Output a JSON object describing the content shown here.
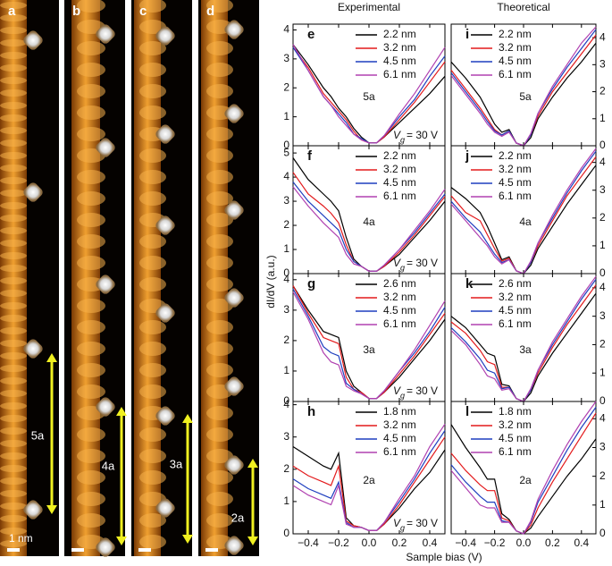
{
  "figure": {
    "column_titles": [
      "Experimental",
      "Theoretical"
    ],
    "ylabel": "dI/dV (a.u.)",
    "xlabel": "Sample bias (V)"
  },
  "images": [
    {
      "label": "a",
      "period": "5a"
    },
    {
      "label": "b",
      "period": "4a"
    },
    {
      "label": "c",
      "period": "3a"
    },
    {
      "label": "d",
      "period": "2a"
    }
  ],
  "scale_bar": "1 nm",
  "chart_data": [
    {
      "type": "line",
      "panel": "e",
      "annotation": "5a",
      "gate": {
        "symbol": "V",
        "sub": "g",
        "text": "= 30 V"
      },
      "x": [
        -0.5,
        -0.4,
        -0.3,
        -0.25,
        -0.2,
        -0.15,
        -0.1,
        -0.05,
        0,
        0.05,
        0.1,
        0.2,
        0.3,
        0.4,
        0.5
      ],
      "xlim": [
        -0.5,
        0.5
      ],
      "xticks": [
        -0.4,
        -0.2,
        0,
        0.2,
        0.4
      ],
      "ylim": [
        0,
        4.2
      ],
      "yticks": [
        0,
        1,
        2,
        3,
        4
      ],
      "series": [
        {
          "name": "2.2 nm",
          "color": "#000000",
          "values": [
            3.5,
            2.8,
            2.0,
            1.7,
            1.3,
            1.0,
            0.6,
            0.3,
            0.1,
            0.1,
            0.3,
            0.8,
            1.3,
            1.8,
            2.4
          ]
        },
        {
          "name": "3.2 nm",
          "color": "#e31a1c",
          "values": [
            3.4,
            2.7,
            1.8,
            1.5,
            1.2,
            0.9,
            0.5,
            0.2,
            0.1,
            0.1,
            0.3,
            0.9,
            1.5,
            2.2,
            2.9
          ]
        },
        {
          "name": "4.5 nm",
          "color": "#1f3fbf",
          "values": [
            3.4,
            2.6,
            1.7,
            1.4,
            1.1,
            0.8,
            0.4,
            0.25,
            0.1,
            0.1,
            0.35,
            1.0,
            1.6,
            2.4,
            3.1
          ]
        },
        {
          "name": "6.1 nm",
          "color": "#b040b0",
          "values": [
            3.5,
            2.6,
            1.7,
            1.4,
            1.0,
            0.7,
            0.4,
            0.2,
            0.1,
            0.1,
            0.35,
            1.1,
            1.8,
            2.6,
            3.4
          ]
        }
      ]
    },
    {
      "type": "line",
      "panel": "f",
      "annotation": "4a",
      "gate": {
        "symbol": "V",
        "sub": "g",
        "text": "= 30 V"
      },
      "x": [
        -0.5,
        -0.4,
        -0.3,
        -0.25,
        -0.2,
        -0.15,
        -0.1,
        -0.05,
        0,
        0.05,
        0.1,
        0.2,
        0.3,
        0.4,
        0.5
      ],
      "xlim": [
        -0.5,
        0.5
      ],
      "xticks": [
        -0.4,
        -0.2,
        0,
        0.2,
        0.4
      ],
      "ylim": [
        0,
        5.3
      ],
      "yticks": [
        0,
        1,
        2,
        3,
        4,
        5
      ],
      "series": [
        {
          "name": "2.2 nm",
          "color": "#000000",
          "values": [
            4.8,
            3.9,
            3.3,
            3.0,
            2.6,
            1.5,
            0.6,
            0.3,
            0.1,
            0.1,
            0.3,
            0.8,
            1.5,
            2.2,
            3.0
          ]
        },
        {
          "name": "3.2 nm",
          "color": "#e31a1c",
          "values": [
            4.2,
            3.3,
            2.8,
            2.5,
            2.1,
            1.2,
            0.5,
            0.3,
            0.1,
            0.1,
            0.3,
            0.9,
            1.6,
            2.4,
            3.2
          ]
        },
        {
          "name": "4.5 nm",
          "color": "#1f3fbf",
          "values": [
            3.8,
            3.0,
            2.4,
            2.1,
            1.8,
            1.0,
            0.5,
            0.3,
            0.1,
            0.1,
            0.35,
            1.0,
            1.7,
            2.5,
            3.3
          ]
        },
        {
          "name": "6.1 nm",
          "color": "#b040b0",
          "values": [
            3.6,
            2.8,
            2.1,
            1.8,
            1.5,
            0.8,
            0.4,
            0.3,
            0.1,
            0.1,
            0.35,
            1.0,
            1.8,
            2.6,
            3.5
          ]
        }
      ]
    },
    {
      "type": "line",
      "panel": "g",
      "annotation": "3a",
      "gate": {
        "symbol": "V",
        "sub": "g",
        "text": "= 30 V"
      },
      "x": [
        -0.5,
        -0.4,
        -0.3,
        -0.25,
        -0.2,
        -0.15,
        -0.1,
        -0.05,
        0,
        0.05,
        0.1,
        0.2,
        0.3,
        0.4,
        0.5
      ],
      "xlim": [
        -0.5,
        0.5
      ],
      "xticks": [
        -0.4,
        -0.2,
        0,
        0.2,
        0.4
      ],
      "ylim": [
        0,
        4.2
      ],
      "yticks": [
        0,
        1,
        2,
        3,
        4
      ],
      "series": [
        {
          "name": "2.6 nm",
          "color": "#000000",
          "values": [
            3.8,
            3.0,
            2.3,
            2.2,
            2.1,
            1.0,
            0.5,
            0.3,
            0.1,
            0.1,
            0.3,
            0.8,
            1.4,
            2.0,
            2.7
          ]
        },
        {
          "name": "3.2 nm",
          "color": "#e31a1c",
          "values": [
            3.8,
            2.9,
            2.1,
            2.0,
            1.9,
            0.8,
            0.4,
            0.3,
            0.1,
            0.1,
            0.3,
            0.9,
            1.5,
            2.2,
            2.9
          ]
        },
        {
          "name": "4.5 nm",
          "color": "#1f3fbf",
          "values": [
            3.7,
            2.8,
            1.8,
            1.6,
            1.5,
            0.6,
            0.4,
            0.25,
            0.1,
            0.1,
            0.35,
            1.0,
            1.6,
            2.3,
            3.1
          ]
        },
        {
          "name": "6.1 nm",
          "color": "#b040b0",
          "values": [
            3.6,
            2.7,
            1.6,
            1.3,
            1.2,
            0.5,
            0.35,
            0.25,
            0.1,
            0.1,
            0.35,
            1.0,
            1.7,
            2.5,
            3.3
          ]
        }
      ]
    },
    {
      "type": "line",
      "panel": "h",
      "annotation": "2a",
      "gate": {
        "symbol": "V",
        "sub": "g",
        "text": "= 30 V"
      },
      "x": [
        -0.5,
        -0.4,
        -0.3,
        -0.25,
        -0.2,
        -0.15,
        -0.1,
        -0.05,
        0,
        0.05,
        0.1,
        0.2,
        0.3,
        0.4,
        0.5
      ],
      "xlim": [
        -0.5,
        0.5
      ],
      "xticks": [
        {
          "value": -0.4,
          "label": "−0.4"
        },
        {
          "value": -0.2,
          "label": "−0.2"
        },
        {
          "value": 0,
          "label": "0.0"
        },
        0.2,
        0.4
      ],
      "ylim": [
        0,
        4.1
      ],
      "yticks": [
        0,
        1,
        2,
        3,
        4
      ],
      "series": [
        {
          "name": "1.8 nm",
          "color": "#000000",
          "values": [
            2.7,
            2.4,
            2.1,
            2.0,
            2.5,
            0.5,
            0.25,
            0.2,
            0.1,
            0.1,
            0.3,
            0.8,
            1.4,
            1.9,
            2.6
          ]
        },
        {
          "name": "3.2 nm",
          "color": "#e31a1c",
          "values": [
            2.1,
            1.8,
            1.6,
            1.5,
            2.1,
            0.4,
            0.25,
            0.2,
            0.1,
            0.1,
            0.3,
            0.9,
            1.6,
            2.3,
            3.0
          ]
        },
        {
          "name": "4.5 nm",
          "color": "#1f3fbf",
          "values": [
            1.7,
            1.4,
            1.2,
            1.1,
            1.6,
            0.35,
            0.2,
            0.2,
            0.1,
            0.1,
            0.35,
            1.0,
            1.7,
            2.5,
            3.2
          ]
        },
        {
          "name": "6.1 nm",
          "color": "#b040b0",
          "values": [
            1.5,
            1.2,
            1.0,
            0.9,
            1.5,
            0.3,
            0.2,
            0.2,
            0.1,
            0.1,
            0.35,
            1.1,
            1.8,
            2.7,
            3.4
          ]
        }
      ]
    },
    {
      "type": "line",
      "panel": "i",
      "annotation": "5a",
      "x": [
        -0.5,
        -0.4,
        -0.3,
        -0.25,
        -0.2,
        -0.15,
        -0.1,
        -0.05,
        0,
        0.05,
        0.1,
        0.2,
        0.3,
        0.4,
        0.5
      ],
      "xlim": [
        -0.5,
        0.5
      ],
      "xticks": [
        -0.4,
        -0.2,
        0,
        0.2,
        0.4
      ],
      "ylim": [
        0,
        4.5
      ],
      "yticks": [
        0,
        1,
        2,
        3,
        4
      ],
      "series": [
        {
          "name": "2.2 nm",
          "color": "#000000",
          "values": [
            3.1,
            2.5,
            1.8,
            1.3,
            0.8,
            0.5,
            0.6,
            0.1,
            0.0,
            0.3,
            1.0,
            1.8,
            2.5,
            3.1,
            3.8
          ]
        },
        {
          "name": "3.2 nm",
          "color": "#e31a1c",
          "values": [
            2.8,
            2.1,
            1.4,
            1.0,
            0.6,
            0.4,
            0.55,
            0.1,
            0.0,
            0.4,
            1.1,
            2.0,
            2.7,
            3.4,
            4.1
          ]
        },
        {
          "name": "4.5 nm",
          "color": "#1f3fbf",
          "values": [
            2.7,
            2.0,
            1.3,
            0.9,
            0.55,
            0.4,
            0.55,
            0.1,
            0.0,
            0.4,
            1.2,
            2.1,
            2.9,
            3.6,
            4.3
          ]
        },
        {
          "name": "6.1 nm",
          "color": "#b040b0",
          "values": [
            2.6,
            1.9,
            1.2,
            0.8,
            0.5,
            0.35,
            0.5,
            0.1,
            0.0,
            0.45,
            1.2,
            2.2,
            3.0,
            3.8,
            4.4
          ]
        }
      ]
    },
    {
      "type": "line",
      "panel": "j",
      "annotation": "4a",
      "x": [
        -0.5,
        -0.4,
        -0.3,
        -0.25,
        -0.2,
        -0.15,
        -0.1,
        -0.05,
        0,
        0.05,
        0.1,
        0.2,
        0.3,
        0.4,
        0.5
      ],
      "xlim": [
        -0.5,
        0.5
      ],
      "xticks": [
        -0.4,
        -0.2,
        0,
        0.2,
        0.4
      ],
      "ylim": [
        0,
        4.6
      ],
      "yticks": [
        0,
        1,
        2,
        3,
        4
      ],
      "series": [
        {
          "name": "2.2 nm",
          "color": "#000000",
          "values": [
            3.1,
            2.7,
            2.2,
            1.7,
            1.1,
            0.5,
            0.6,
            0.1,
            0.0,
            0.3,
            0.9,
            1.7,
            2.5,
            3.2,
            3.9
          ]
        },
        {
          "name": "3.2 nm",
          "color": "#e31a1c",
          "values": [
            2.8,
            2.2,
            1.9,
            1.4,
            0.9,
            0.45,
            0.55,
            0.1,
            0.0,
            0.4,
            1.0,
            1.9,
            2.8,
            3.5,
            4.2
          ]
        },
        {
          "name": "4.5 nm",
          "color": "#1f3fbf",
          "values": [
            2.6,
            2.0,
            1.5,
            1.1,
            0.7,
            0.4,
            0.5,
            0.1,
            0.0,
            0.4,
            1.1,
            2.0,
            2.9,
            3.7,
            4.4
          ]
        },
        {
          "name": "6.1 nm",
          "color": "#b040b0",
          "values": [
            2.5,
            1.9,
            1.3,
            1.0,
            0.6,
            0.35,
            0.5,
            0.1,
            0.0,
            0.45,
            1.1,
            2.1,
            3.0,
            3.8,
            4.5
          ]
        }
      ]
    },
    {
      "type": "line",
      "panel": "k",
      "annotation": "3a",
      "x": [
        -0.5,
        -0.4,
        -0.3,
        -0.25,
        -0.2,
        -0.15,
        -0.1,
        -0.05,
        0,
        0.05,
        0.1,
        0.2,
        0.3,
        0.4,
        0.5
      ],
      "xlim": [
        -0.5,
        0.5
      ],
      "xticks": [
        -0.4,
        -0.2,
        0,
        0.2,
        0.4
      ],
      "ylim": [
        0,
        4.5
      ],
      "yticks": [
        0,
        1,
        2,
        3,
        4
      ],
      "series": [
        {
          "name": "2.6 nm",
          "color": "#000000",
          "values": [
            3.0,
            2.6,
            2.0,
            1.7,
            1.6,
            0.6,
            0.55,
            0.1,
            0.0,
            0.3,
            0.9,
            1.7,
            2.4,
            3.1,
            3.8
          ]
        },
        {
          "name": "3.2 nm",
          "color": "#e31a1c",
          "values": [
            2.8,
            2.4,
            1.8,
            1.4,
            1.3,
            0.5,
            0.5,
            0.1,
            0.0,
            0.4,
            1.0,
            1.9,
            2.7,
            3.4,
            4.1
          ]
        },
        {
          "name": "4.5 nm",
          "color": "#1f3fbf",
          "values": [
            2.6,
            2.1,
            1.5,
            1.1,
            1.0,
            0.45,
            0.5,
            0.1,
            0.0,
            0.4,
            1.1,
            2.0,
            2.8,
            3.6,
            4.3
          ]
        },
        {
          "name": "6.1 nm",
          "color": "#b040b0",
          "values": [
            2.5,
            2.0,
            1.3,
            0.9,
            0.8,
            0.4,
            0.45,
            0.1,
            0.0,
            0.45,
            1.1,
            2.1,
            2.9,
            3.7,
            4.4
          ]
        }
      ]
    },
    {
      "type": "line",
      "panel": "l",
      "annotation": "2a",
      "x": [
        -0.5,
        -0.4,
        -0.3,
        -0.25,
        -0.2,
        -0.15,
        -0.1,
        -0.05,
        0,
        0.05,
        0.1,
        0.2,
        0.3,
        0.4,
        0.5
      ],
      "xlim": [
        -0.5,
        0.5
      ],
      "xticks": [
        {
          "value": -0.4,
          "label": "−0.4"
        },
        {
          "value": -0.2,
          "label": "−0.2"
        },
        {
          "value": 0,
          "label": "0.0"
        },
        0.2,
        0.4
      ],
      "ylim": [
        0,
        4.6
      ],
      "yticks": [
        0,
        1,
        2,
        3,
        4
      ],
      "series": [
        {
          "name": "1.8 nm",
          "color": "#000000",
          "values": [
            3.8,
            3.0,
            2.3,
            1.9,
            1.9,
            0.7,
            0.5,
            0.1,
            0.0,
            0.2,
            0.6,
            1.3,
            2.0,
            2.6,
            3.3
          ]
        },
        {
          "name": "3.2 nm",
          "color": "#e31a1c",
          "values": [
            2.8,
            2.2,
            1.7,
            1.5,
            1.5,
            0.55,
            0.45,
            0.1,
            0.0,
            0.3,
            0.9,
            1.8,
            2.6,
            3.4,
            4.2
          ]
        },
        {
          "name": "4.5 nm",
          "color": "#1f3fbf",
          "values": [
            2.4,
            1.8,
            1.3,
            1.1,
            1.1,
            0.45,
            0.4,
            0.1,
            0.0,
            0.4,
            1.1,
            2.0,
            2.9,
            3.7,
            4.4
          ]
        },
        {
          "name": "6.1 nm",
          "color": "#b040b0",
          "values": [
            2.2,
            1.6,
            1.0,
            0.9,
            0.9,
            0.4,
            0.4,
            0.1,
            0.0,
            0.45,
            1.2,
            2.2,
            3.1,
            3.9,
            4.6
          ]
        }
      ]
    }
  ]
}
